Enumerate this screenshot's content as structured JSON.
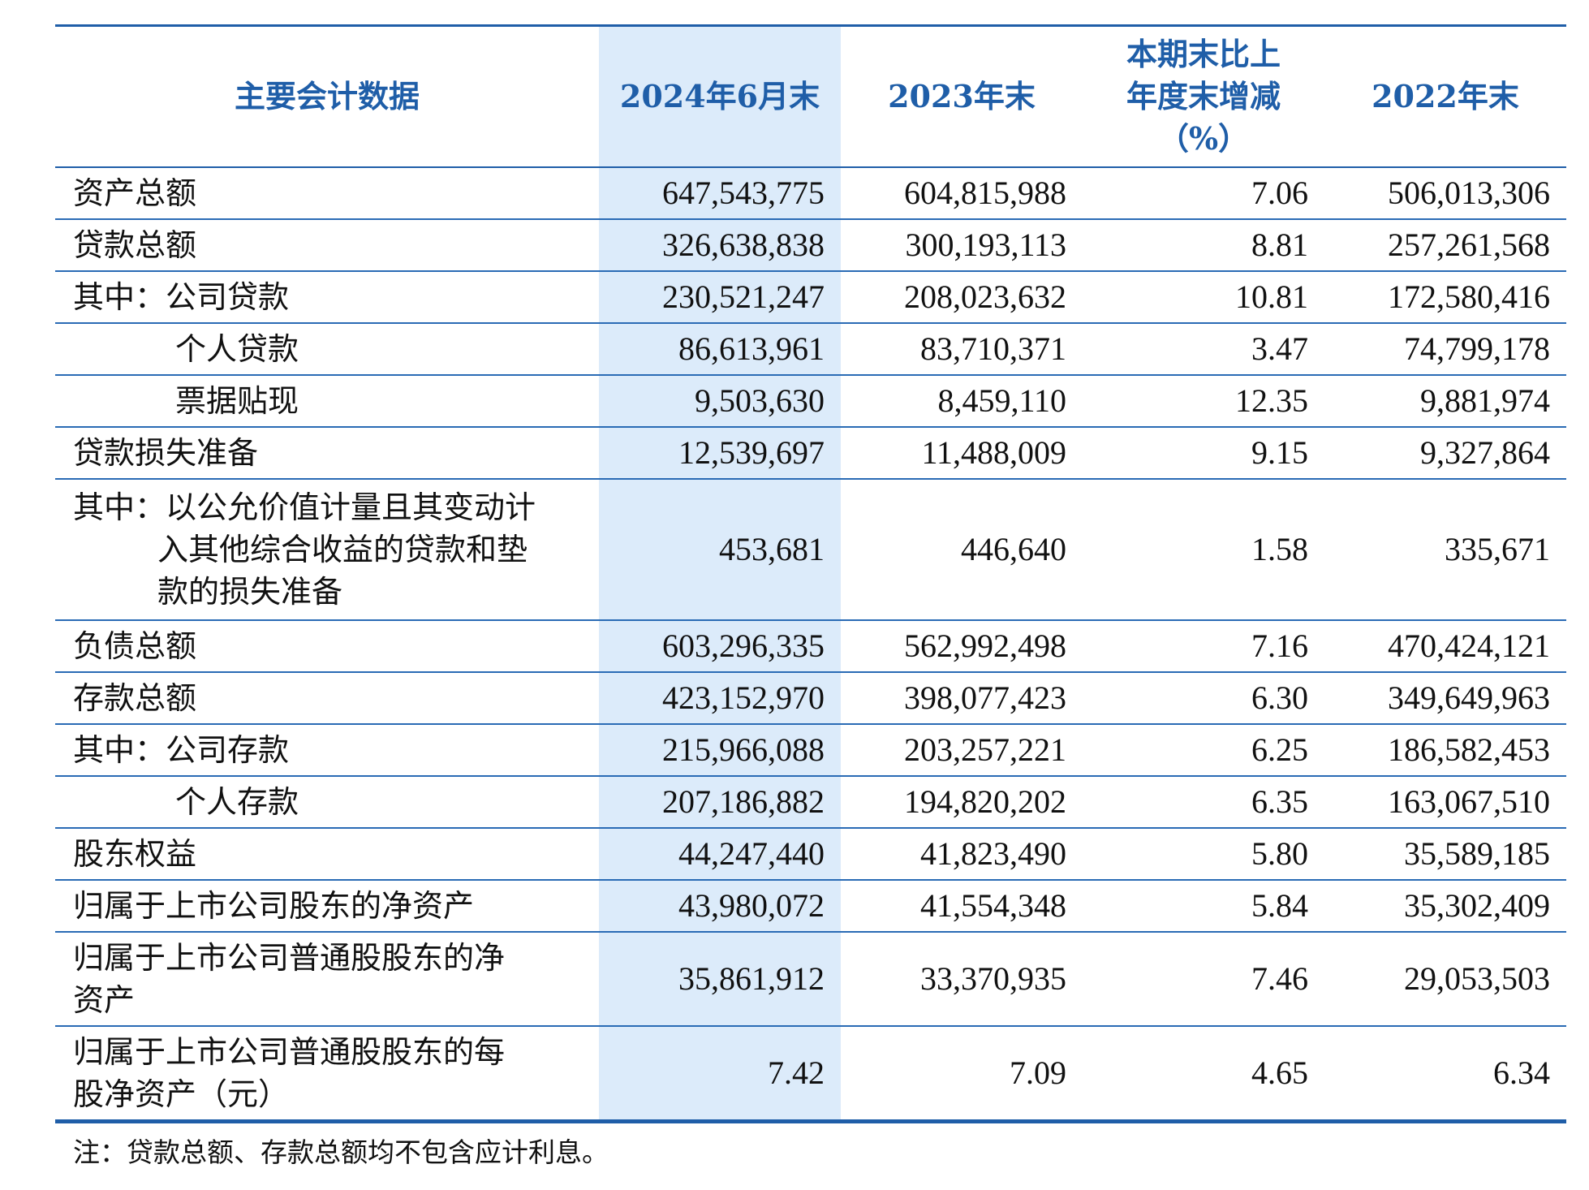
{
  "header": {
    "col0": "主要会计数据",
    "col1": "2024年6月末",
    "col2": "2023年末",
    "col3_line1": "本期末比上",
    "col3_line2": "年度末增减",
    "col3_line3": "（%）",
    "col4": "2022年末"
  },
  "rows": [
    {
      "label": "资产总额",
      "v1": "647,543,775",
      "v2": "604,815,988",
      "v3": "7.06",
      "v4": "506,013,306"
    },
    {
      "label": "贷款总额",
      "v1": "326,638,838",
      "v2": "300,193,113",
      "v3": "8.81",
      "v4": "257,261,568"
    },
    {
      "label": "其中：公司贷款",
      "v1": "230,521,247",
      "v2": "208,023,632",
      "v3": "10.81",
      "v4": "172,580,416"
    },
    {
      "label": "个人贷款",
      "v1": "86,613,961",
      "v2": "83,710,371",
      "v3": "3.47",
      "v4": "74,799,178"
    },
    {
      "label": "票据贴现",
      "v1": "9,503,630",
      "v2": "8,459,110",
      "v3": "12.35",
      "v4": "9,881,974"
    },
    {
      "label": "贷款损失准备",
      "v1": "12,539,697",
      "v2": "11,488,009",
      "v3": "9.15",
      "v4": "9,327,864"
    },
    {
      "label_line1": "其中：以公允价值计量且其变动计",
      "label_line2": "入其他综合收益的贷款和垫",
      "label_line3": "款的损失准备",
      "v1": "453,681",
      "v2": "446,640",
      "v3": "1.58",
      "v4": "335,671"
    },
    {
      "label": "负债总额",
      "v1": "603,296,335",
      "v2": "562,992,498",
      "v3": "7.16",
      "v4": "470,424,121"
    },
    {
      "label": "存款总额",
      "v1": "423,152,970",
      "v2": "398,077,423",
      "v3": "6.30",
      "v4": "349,649,963"
    },
    {
      "label": "其中：公司存款",
      "v1": "215,966,088",
      "v2": "203,257,221",
      "v3": "6.25",
      "v4": "186,582,453"
    },
    {
      "label": "个人存款",
      "v1": "207,186,882",
      "v2": "194,820,202",
      "v3": "6.35",
      "v4": "163,067,510"
    },
    {
      "label": "股东权益",
      "v1": "44,247,440",
      "v2": "41,823,490",
      "v3": "5.80",
      "v4": "35,589,185"
    },
    {
      "label": "归属于上市公司股东的净资产",
      "v1": "43,980,072",
      "v2": "41,554,348",
      "v3": "5.84",
      "v4": "35,302,409"
    },
    {
      "label_line1": "归属于上市公司普通股股东的净",
      "label_line2": "资产",
      "v1": "35,861,912",
      "v2": "33,370,935",
      "v3": "7.46",
      "v4": "29,053,503"
    },
    {
      "label_line1": "归属于上市公司普通股股东的每",
      "label_line2": "股净资产（元）",
      "v1": "7.42",
      "v2": "7.09",
      "v3": "4.65",
      "v4": "6.34"
    }
  ],
  "note": "注：贷款总额、存款总额均不包含应计利息。",
  "colors": {
    "header_text": "#1f5ea8",
    "rule": "#1f5ea8",
    "highlight_column": "#dcebfa"
  }
}
